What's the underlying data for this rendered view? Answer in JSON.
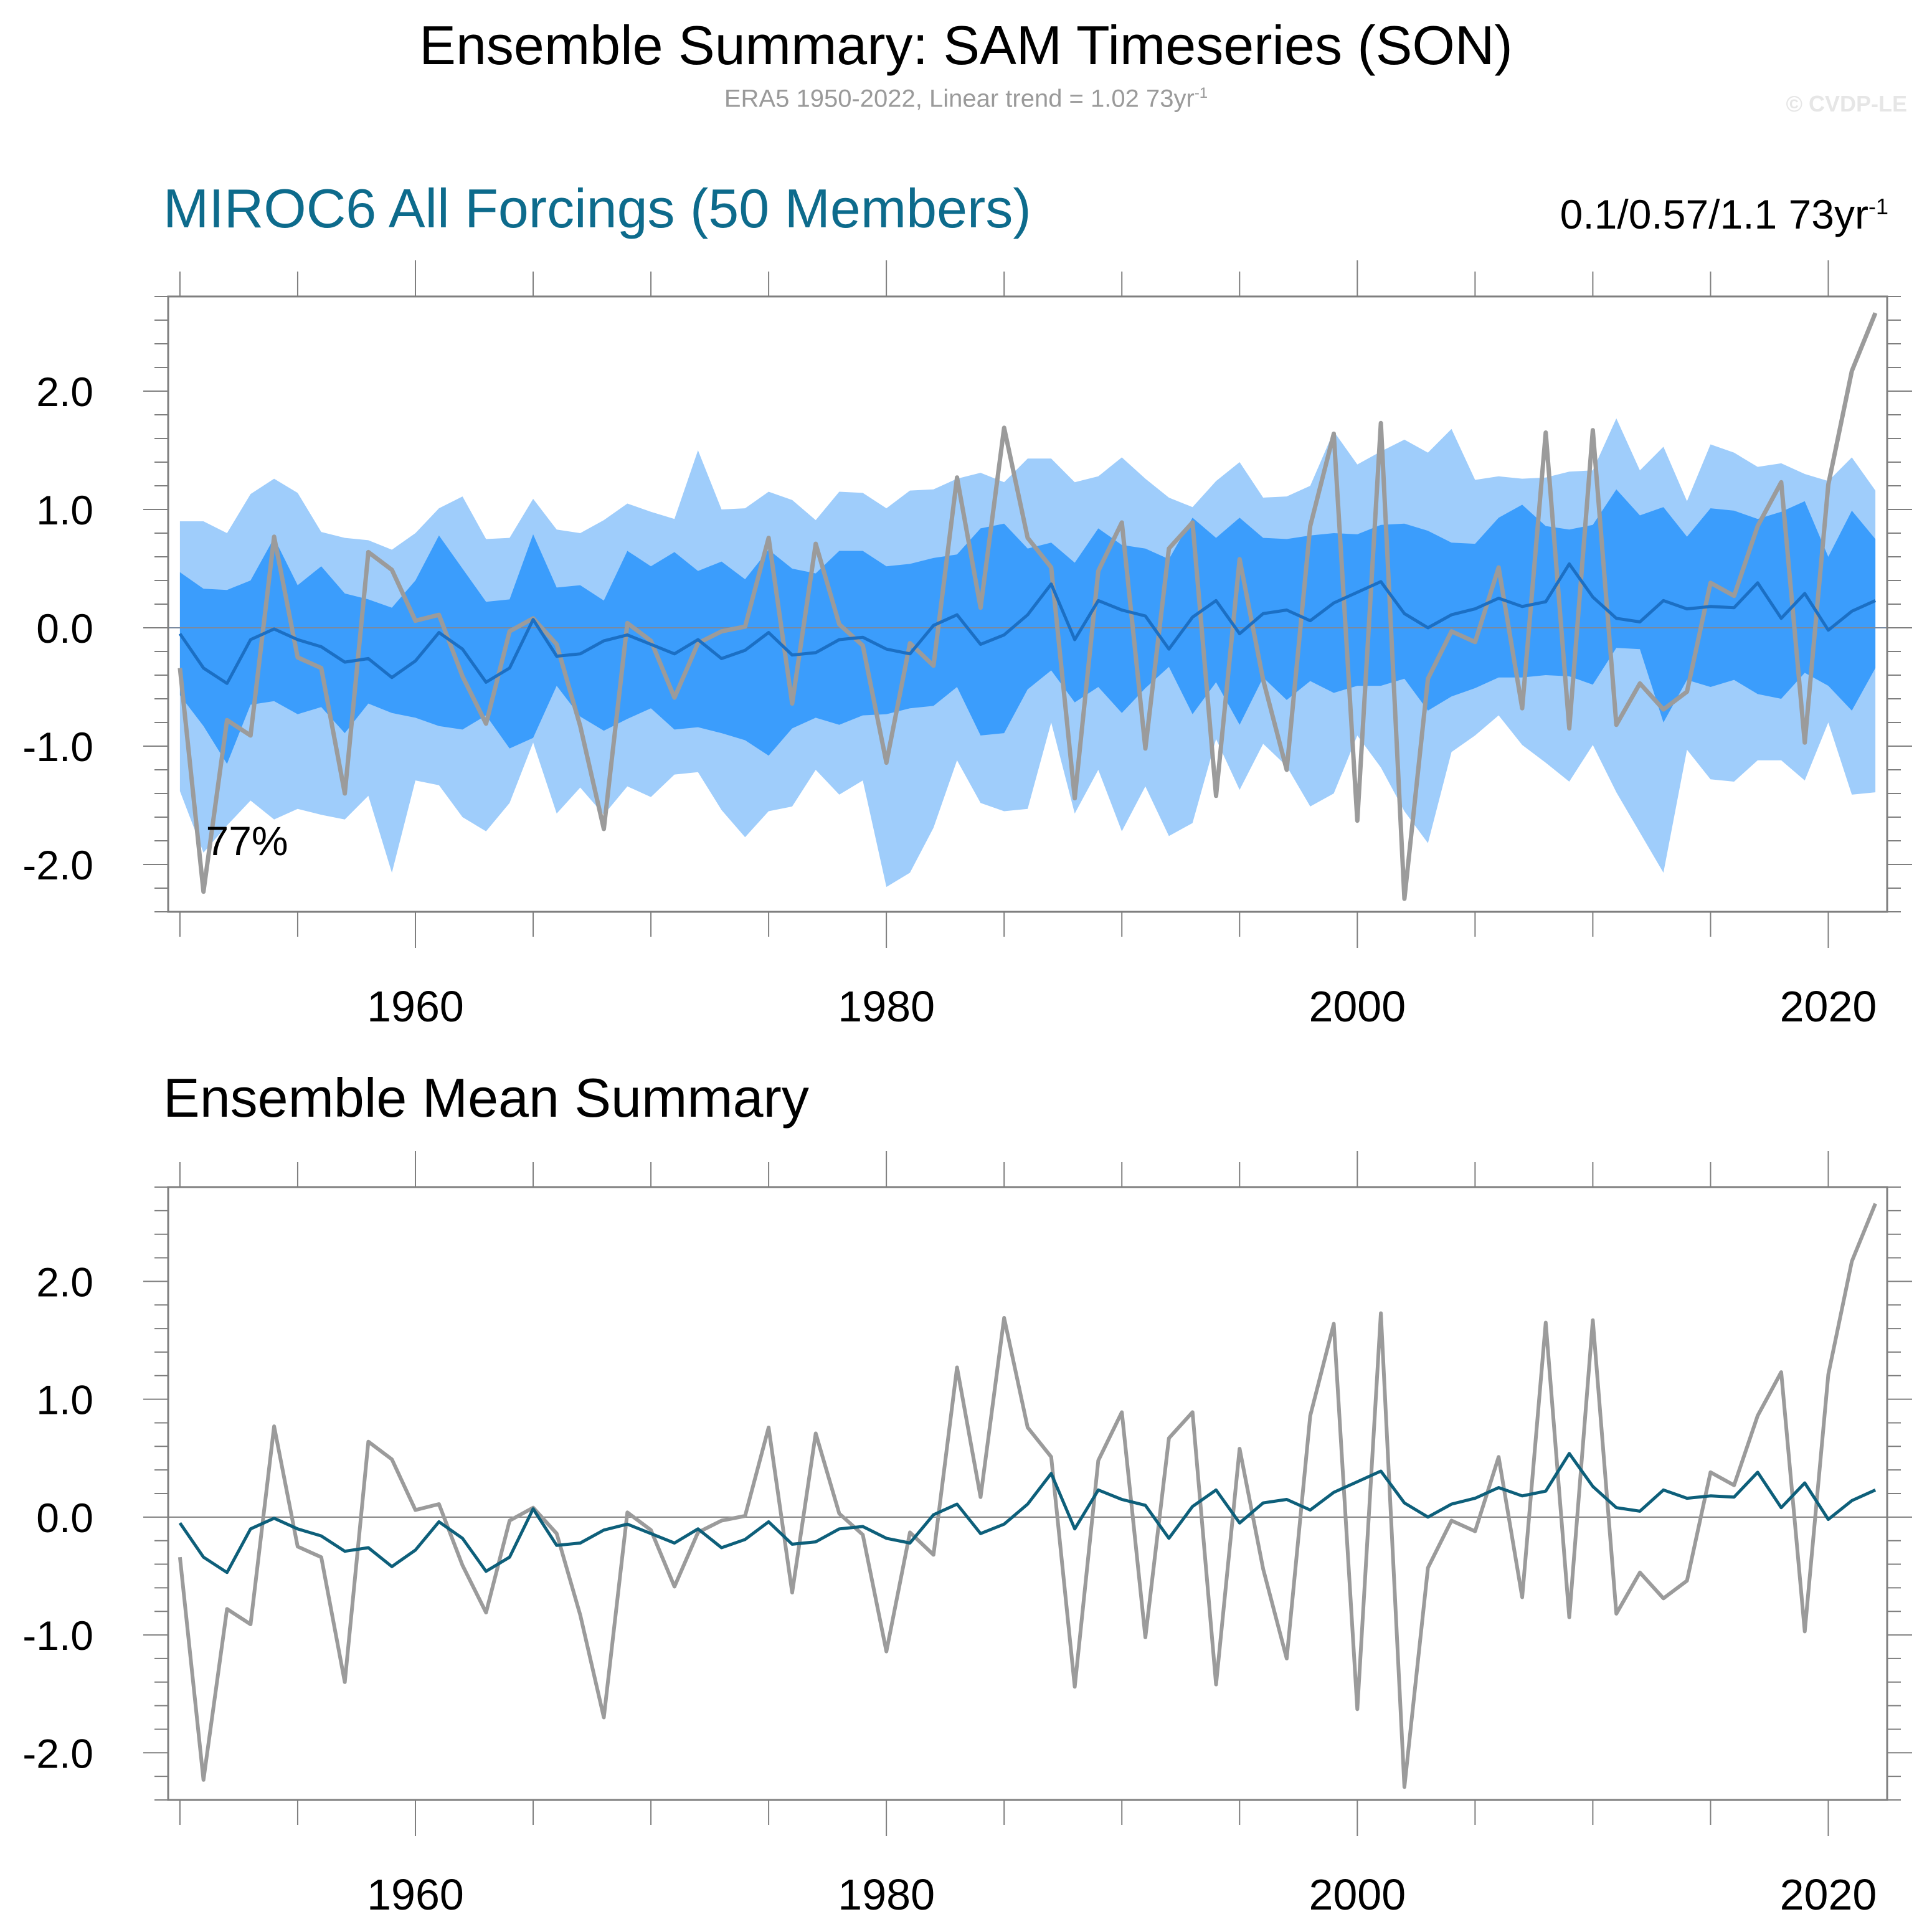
{
  "header": {
    "title": "Ensemble Summary: SAM Timeseries (SON)",
    "subtitle": "ERA5 1950-2022, Linear trend = 1.02 73yr",
    "subtitle_sup": "-1",
    "copyright": "© CVDP-LE"
  },
  "panel_top": {
    "title": "MIROC6 All Forcings (50 Members)",
    "trend_label": "0.1/0.57/1.1 73yr",
    "trend_sup": "-1",
    "percent_label": "77%"
  },
  "panel_bottom": {
    "title": "Ensemble Mean Summary"
  },
  "colors": {
    "observed": "#9b9b9b",
    "ensemble_mean_top": "#1b6fc4",
    "ensemble_mean_bottom": "#0d5f7a",
    "band_outer": "#9fcdfb",
    "band_inner": "#3b9dfc",
    "axis": "#7f7f7f",
    "title_blue": "#0d6b8c"
  },
  "chart_data": [
    {
      "type": "area",
      "panel": "top",
      "title": "MIROC6 All Forcings (50 Members)",
      "x_start": 1950,
      "x_end": 2022,
      "xlim": [
        1949.5,
        2022.5
      ],
      "ylim": [
        -2.4,
        2.8
      ],
      "x_ticks": [
        1960,
        1980,
        2000,
        2020
      ],
      "x_tick_labels": [
        "1960",
        "1980",
        "2000",
        "2020"
      ],
      "y_ticks": [
        -2,
        -1,
        0,
        1,
        2
      ],
      "y_tick_labels": [
        "-2.0",
        "-1.0",
        "0.0",
        "1.0",
        "2.0"
      ],
      "series": [
        {
          "name": "Ensemble spread (outer, min/max)",
          "upper": [
            0.9,
            0.9,
            0.8,
            1.13,
            1.26,
            1.14,
            0.81,
            0.76,
            0.74,
            0.66,
            0.8,
            1.01,
            1.11,
            0.75,
            0.76,
            1.09,
            0.83,
            0.8,
            0.91,
            1.05,
            0.98,
            0.92,
            1.5,
            1.0,
            1.01,
            1.15,
            1.08,
            0.91,
            1.15,
            1.14,
            1.01,
            1.16,
            1.17,
            1.26,
            1.31,
            1.23,
            1.43,
            1.43,
            1.23,
            1.28,
            1.44,
            1.26,
            1.1,
            1.02,
            1.24,
            1.4,
            1.1,
            1.11,
            1.2,
            1.66,
            1.38,
            1.49,
            1.59,
            1.48,
            1.68,
            1.25,
            1.28,
            1.26,
            1.27,
            1.32,
            1.33,
            1.77,
            1.33,
            1.53,
            1.07,
            1.55,
            1.48,
            1.36,
            1.39,
            1.3,
            1.24,
            1.44,
            1.16
          ],
          "lower": [
            -1.38,
            -1.9,
            -1.67,
            -1.46,
            -1.62,
            -1.53,
            -1.58,
            -1.62,
            -1.42,
            -2.07,
            -1.29,
            -1.33,
            -1.6,
            -1.72,
            -1.48,
            -0.97,
            -1.57,
            -1.35,
            -1.58,
            -1.34,
            -1.43,
            -1.24,
            -1.22,
            -1.54,
            -1.77,
            -1.55,
            -1.51,
            -1.2,
            -1.41,
            -1.29,
            -2.19,
            -2.07,
            -1.69,
            -1.12,
            -1.48,
            -1.55,
            -1.53,
            -0.8,
            -1.57,
            -1.2,
            -1.72,
            -1.34,
            -1.76,
            -1.65,
            -0.94,
            -1.37,
            -0.98,
            -1.17,
            -1.51,
            -1.4,
            -0.91,
            -1.18,
            -1.55,
            -1.82,
            -1.05,
            -0.91,
            -0.74,
            -0.99,
            -1.14,
            -1.3,
            -0.99,
            -1.39,
            -1.73,
            -2.07,
            -1.03,
            -1.28,
            -1.3,
            -1.12,
            -1.12,
            -1.29,
            -0.8,
            -1.41,
            -1.39
          ]
        },
        {
          "name": "Ensemble spread (inner, 10th/90th)",
          "upper": [
            0.47,
            0.33,
            0.32,
            0.4,
            0.76,
            0.36,
            0.52,
            0.29,
            0.24,
            0.17,
            0.4,
            0.78,
            0.5,
            0.22,
            0.24,
            0.79,
            0.34,
            0.36,
            0.23,
            0.65,
            0.52,
            0.64,
            0.48,
            0.56,
            0.41,
            0.66,
            0.5,
            0.46,
            0.65,
            0.65,
            0.52,
            0.54,
            0.59,
            0.62,
            0.84,
            0.88,
            0.67,
            0.72,
            0.55,
            0.84,
            0.7,
            0.67,
            0.58,
            0.93,
            0.76,
            0.93,
            0.76,
            0.75,
            0.78,
            0.8,
            0.79,
            0.87,
            0.88,
            0.82,
            0.72,
            0.71,
            0.93,
            1.04,
            0.86,
            0.83,
            0.87,
            1.17,
            0.95,
            1.02,
            0.77,
            1.01,
            0.99,
            0.92,
            0.98,
            1.07,
            0.6,
            0.99,
            0.75
          ],
          "lower": [
            -0.57,
            -0.83,
            -1.15,
            -0.65,
            -0.62,
            -0.73,
            -0.67,
            -0.89,
            -0.64,
            -0.72,
            -0.76,
            -0.83,
            -0.86,
            -0.74,
            -1.02,
            -0.93,
            -0.49,
            -0.75,
            -0.87,
            -0.77,
            -0.68,
            -0.86,
            -0.84,
            -0.89,
            -0.95,
            -1.08,
            -0.85,
            -0.76,
            -0.82,
            -0.74,
            -0.73,
            -0.68,
            -0.66,
            -0.5,
            -0.91,
            -0.89,
            -0.52,
            -0.36,
            -0.63,
            -0.5,
            -0.72,
            -0.51,
            -0.33,
            -0.73,
            -0.46,
            -0.82,
            -0.42,
            -0.61,
            -0.45,
            -0.55,
            -0.49,
            -0.49,
            -0.43,
            -0.7,
            -0.58,
            -0.51,
            -0.42,
            -0.42,
            -0.4,
            -0.41,
            -0.48,
            -0.17,
            -0.18,
            -0.8,
            -0.44,
            -0.5,
            -0.44,
            -0.56,
            -0.6,
            -0.38,
            -0.49,
            -0.7,
            -0.34
          ]
        },
        {
          "name": "Ensemble mean",
          "values": [
            -0.05,
            -0.34,
            -0.47,
            -0.1,
            -0.01,
            -0.1,
            -0.16,
            -0.29,
            -0.26,
            -0.42,
            -0.28,
            -0.04,
            -0.18,
            -0.46,
            -0.34,
            0.07,
            -0.24,
            -0.22,
            -0.11,
            -0.06,
            -0.14,
            -0.22,
            -0.1,
            -0.26,
            -0.19,
            -0.04,
            -0.23,
            -0.21,
            -0.1,
            -0.08,
            -0.18,
            -0.22,
            0.02,
            0.11,
            -0.14,
            -0.06,
            0.11,
            0.37,
            -0.1,
            0.23,
            0.15,
            0.1,
            -0.18,
            0.09,
            0.23,
            -0.05,
            0.12,
            0.15,
            0.06,
            0.21,
            0.3,
            0.39,
            0.12,
            0.0,
            0.11,
            0.16,
            0.25,
            0.18,
            0.22,
            0.54,
            0.26,
            0.08,
            0.05,
            0.23,
            0.16,
            0.18,
            0.17,
            0.38,
            0.08,
            0.29,
            -0.02,
            0.14,
            0.23
          ]
        },
        {
          "name": "ERA5 observed",
          "values": [
            -0.34,
            -2.23,
            -0.78,
            -0.91,
            0.77,
            -0.25,
            -0.34,
            -1.4,
            0.64,
            0.49,
            0.06,
            0.11,
            -0.41,
            -0.81,
            -0.03,
            0.08,
            -0.14,
            -0.83,
            -1.7,
            0.04,
            -0.11,
            -0.59,
            -0.13,
            -0.03,
            0.01,
            0.76,
            -0.64,
            0.71,
            0.03,
            -0.15,
            -1.14,
            -0.13,
            -0.32,
            1.27,
            0.17,
            1.69,
            0.76,
            0.51,
            -1.44,
            0.48,
            0.89,
            -1.02,
            0.67,
            0.89,
            -1.42,
            0.58,
            -0.44,
            -1.2,
            0.86,
            1.64,
            -1.63,
            1.73,
            -2.29,
            -0.43,
            -0.03,
            -0.12,
            0.51,
            -0.68,
            1.65,
            -0.85,
            1.67,
            -0.82,
            -0.47,
            -0.69,
            -0.54,
            0.38,
            0.27,
            0.86,
            1.23,
            -0.97,
            1.21,
            2.17,
            2.66
          ]
        }
      ]
    },
    {
      "type": "line",
      "panel": "bottom",
      "title": "Ensemble Mean Summary",
      "x_start": 1950,
      "x_end": 2022,
      "xlim": [
        1949.5,
        2022.5
      ],
      "ylim": [
        -2.4,
        2.8
      ],
      "x_ticks": [
        1960,
        1980,
        2000,
        2020
      ],
      "x_tick_labels": [
        "1960",
        "1980",
        "2000",
        "2020"
      ],
      "y_ticks": [
        -2,
        -1,
        0,
        1,
        2
      ],
      "y_tick_labels": [
        "-2.0",
        "-1.0",
        "0.0",
        "1.0",
        "2.0"
      ],
      "series": [
        {
          "name": "ERA5 observed",
          "values": [
            -0.34,
            -2.23,
            -0.78,
            -0.91,
            0.77,
            -0.25,
            -0.34,
            -1.4,
            0.64,
            0.49,
            0.06,
            0.11,
            -0.41,
            -0.81,
            -0.03,
            0.08,
            -0.14,
            -0.83,
            -1.7,
            0.04,
            -0.11,
            -0.59,
            -0.13,
            -0.03,
            0.01,
            0.76,
            -0.64,
            0.71,
            0.03,
            -0.15,
            -1.14,
            -0.13,
            -0.32,
            1.27,
            0.17,
            1.69,
            0.76,
            0.51,
            -1.44,
            0.48,
            0.89,
            -1.02,
            0.67,
            0.89,
            -1.42,
            0.58,
            -0.44,
            -1.2,
            0.86,
            1.64,
            -1.63,
            1.73,
            -2.29,
            -0.43,
            -0.03,
            -0.12,
            0.51,
            -0.68,
            1.65,
            -0.85,
            1.67,
            -0.82,
            -0.47,
            -0.69,
            -0.54,
            0.38,
            0.27,
            0.86,
            1.23,
            -0.97,
            1.21,
            2.17,
            2.66
          ]
        },
        {
          "name": "MIROC6 ensemble mean",
          "values": [
            -0.05,
            -0.34,
            -0.47,
            -0.1,
            -0.01,
            -0.1,
            -0.16,
            -0.29,
            -0.26,
            -0.42,
            -0.28,
            -0.04,
            -0.18,
            -0.46,
            -0.34,
            0.07,
            -0.24,
            -0.22,
            -0.11,
            -0.06,
            -0.14,
            -0.22,
            -0.1,
            -0.26,
            -0.19,
            -0.04,
            -0.23,
            -0.21,
            -0.1,
            -0.08,
            -0.18,
            -0.22,
            0.02,
            0.11,
            -0.14,
            -0.06,
            0.11,
            0.37,
            -0.1,
            0.23,
            0.15,
            0.1,
            -0.18,
            0.09,
            0.23,
            -0.05,
            0.12,
            0.15,
            0.06,
            0.21,
            0.3,
            0.39,
            0.12,
            0.0,
            0.11,
            0.16,
            0.25,
            0.18,
            0.22,
            0.54,
            0.26,
            0.08,
            0.05,
            0.23,
            0.16,
            0.18,
            0.17,
            0.38,
            0.08,
            0.29,
            -0.02,
            0.14,
            0.23
          ]
        }
      ]
    }
  ]
}
